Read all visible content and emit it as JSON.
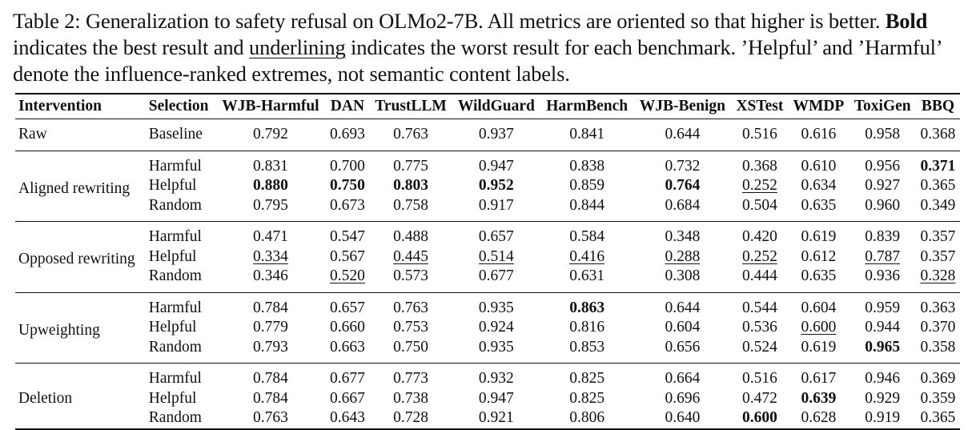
{
  "caption": {
    "part1": "Table 2:   Generalization to safety refusal on OLMo2-7B. All metrics are oriented so that higher is better. ",
    "bold_word": "Bold",
    "part2": " indicates the best result and ",
    "underline_word": "underlining",
    "part3": " indicates the worst result for each benchmark. ’Helpful’ and ’Harmful’ denote the influence-ranked extremes, not semantic content labels."
  },
  "table": {
    "headers": [
      "Intervention",
      "Selection",
      "WJB-Harmful",
      "DAN",
      "TrustLLM",
      "WildGuard",
      "HarmBench",
      "WJB-Benign",
      "XSTest",
      "WMDP",
      "ToxiGen",
      "BBQ"
    ],
    "groups": [
      {
        "intervention": "Raw",
        "rows": [
          {
            "selection": "Baseline",
            "values": [
              "0.792",
              "0.693",
              "0.763",
              "0.937",
              "0.841",
              "0.644",
              "0.516",
              "0.616",
              "0.958",
              "0.368"
            ],
            "style": [
              "",
              "",
              "",
              "",
              "",
              "",
              "",
              "",
              "",
              ""
            ]
          }
        ]
      },
      {
        "intervention": "Aligned rewriting",
        "rows": [
          {
            "selection": "Harmful",
            "values": [
              "0.831",
              "0.700",
              "0.775",
              "0.947",
              "0.838",
              "0.732",
              "0.368",
              "0.610",
              "0.956",
              "0.371"
            ],
            "style": [
              "",
              "",
              "",
              "",
              "",
              "",
              "",
              "",
              "",
              "best"
            ]
          },
          {
            "selection": "Helpful",
            "values": [
              "0.880",
              "0.750",
              "0.803",
              "0.952",
              "0.859",
              "0.764",
              "0.252",
              "0.634",
              "0.927",
              "0.365"
            ],
            "style": [
              "best",
              "best",
              "best",
              "best",
              "",
              "best",
              "worst",
              "",
              "",
              ""
            ]
          },
          {
            "selection": "Random",
            "values": [
              "0.795",
              "0.673",
              "0.758",
              "0.917",
              "0.844",
              "0.684",
              "0.504",
              "0.635",
              "0.960",
              "0.349"
            ],
            "style": [
              "",
              "",
              "",
              "",
              "",
              "",
              "",
              "",
              "",
              ""
            ]
          }
        ]
      },
      {
        "intervention": "Opposed rewriting",
        "rows": [
          {
            "selection": "Harmful",
            "values": [
              "0.471",
              "0.547",
              "0.488",
              "0.657",
              "0.584",
              "0.348",
              "0.420",
              "0.619",
              "0.839",
              "0.357"
            ],
            "style": [
              "",
              "",
              "",
              "",
              "",
              "",
              "",
              "",
              "",
              ""
            ]
          },
          {
            "selection": "Helpful",
            "values": [
              "0.334",
              "0.567",
              "0.445",
              "0.514",
              "0.416",
              "0.288",
              "0.252",
              "0.612",
              "0.787",
              "0.357"
            ],
            "style": [
              "worst",
              "",
              "worst",
              "worst",
              "worst",
              "worst",
              "worst",
              "",
              "worst",
              ""
            ]
          },
          {
            "selection": "Random",
            "values": [
              "0.346",
              "0.520",
              "0.573",
              "0.677",
              "0.631",
              "0.308",
              "0.444",
              "0.635",
              "0.936",
              "0.328"
            ],
            "style": [
              "",
              "worst",
              "",
              "",
              "",
              "",
              "",
              "",
              "",
              "worst"
            ]
          }
        ]
      },
      {
        "intervention": "Upweighting",
        "rows": [
          {
            "selection": "Harmful",
            "values": [
              "0.784",
              "0.657",
              "0.763",
              "0.935",
              "0.863",
              "0.644",
              "0.544",
              "0.604",
              "0.959",
              "0.363"
            ],
            "style": [
              "",
              "",
              "",
              "",
              "best",
              "",
              "",
              "",
              "",
              ""
            ]
          },
          {
            "selection": "Helpful",
            "values": [
              "0.779",
              "0.660",
              "0.753",
              "0.924",
              "0.816",
              "0.604",
              "0.536",
              "0.600",
              "0.944",
              "0.370"
            ],
            "style": [
              "",
              "",
              "",
              "",
              "",
              "",
              "",
              "worst",
              "",
              ""
            ]
          },
          {
            "selection": "Random",
            "values": [
              "0.793",
              "0.663",
              "0.750",
              "0.935",
              "0.853",
              "0.656",
              "0.524",
              "0.619",
              "0.965",
              "0.358"
            ],
            "style": [
              "",
              "",
              "",
              "",
              "",
              "",
              "",
              "",
              "best",
              ""
            ]
          }
        ]
      },
      {
        "intervention": "Deletion",
        "rows": [
          {
            "selection": "Harmful",
            "values": [
              "0.784",
              "0.677",
              "0.773",
              "0.932",
              "0.825",
              "0.664",
              "0.516",
              "0.617",
              "0.946",
              "0.369"
            ],
            "style": [
              "",
              "",
              "",
              "",
              "",
              "",
              "",
              "",
              "",
              ""
            ]
          },
          {
            "selection": "Helpful",
            "values": [
              "0.784",
              "0.667",
              "0.738",
              "0.947",
              "0.825",
              "0.696",
              "0.472",
              "0.639",
              "0.929",
              "0.359"
            ],
            "style": [
              "",
              "",
              "",
              "",
              "",
              "",
              "",
              "best",
              "",
              ""
            ]
          },
          {
            "selection": "Random",
            "values": [
              "0.763",
              "0.643",
              "0.728",
              "0.921",
              "0.806",
              "0.640",
              "0.600",
              "0.628",
              "0.919",
              "0.365"
            ],
            "style": [
              "",
              "",
              "",
              "",
              "",
              "",
              "best",
              "",
              "",
              ""
            ]
          }
        ]
      }
    ]
  }
}
